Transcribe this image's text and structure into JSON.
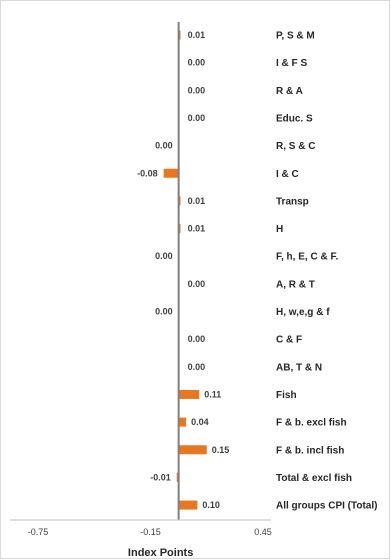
{
  "chart_data": {
    "type": "bar",
    "orientation": "horizontal",
    "categories": [
      "P, S & M",
      "I & F S",
      "R & A",
      "Educ. S",
      "R, S & C",
      "I & C",
      "Transp",
      "H",
      "F, h, E, C & F.",
      "A, R & T",
      "H, w,e,g & f",
      "C & F",
      "AB, T & N",
      "Fish",
      "F & b. excl fish",
      "F & b. incl fish",
      "Total & excl fish",
      "All groups CPI (Total)"
    ],
    "values": [
      0.01,
      0.0,
      0.0,
      0.0,
      0.0,
      -0.08,
      0.01,
      0.01,
      0.0,
      0.0,
      0.0,
      0.0,
      0.0,
      0.11,
      0.04,
      0.15,
      -0.01,
      0.1
    ],
    "value_labels": [
      "0.01",
      "0.00",
      "0.00",
      "0.00",
      "0.00",
      "-0.08",
      "0.01",
      "0.01",
      "0.00",
      "0.00",
      "0.00",
      "0.00",
      "0.00",
      "0.11",
      "0.04",
      "0.15",
      "-0.01",
      "0.10"
    ],
    "xlim": [
      -0.75,
      0.45
    ],
    "xticks": [
      "-0.75",
      "-0.15",
      "0.45"
    ],
    "xlabel": "Index Points",
    "ylabel": "",
    "title": "",
    "bar_color": "#E87722",
    "axis_color": "#7f7f7f",
    "grid": false,
    "legend": "none"
  }
}
